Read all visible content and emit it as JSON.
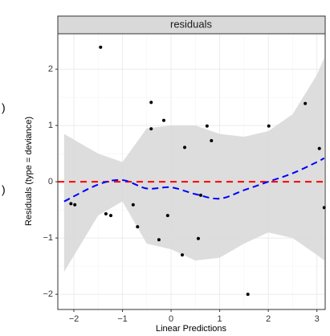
{
  "chart_data": {
    "type": "scatter",
    "strip_title": "residuals",
    "x_label": "Linear Predictions",
    "y_label": "Residuals (type = deviance)",
    "left_fragments": [
      ")",
      ")"
    ],
    "x": [
      -1.45,
      -2.06,
      -1.98,
      -1.34,
      -1.24,
      -0.78,
      -0.69,
      -0.41,
      -0.41,
      -0.25,
      -0.15,
      -0.07,
      0.23,
      0.28,
      0.56,
      0.61,
      0.74,
      0.83,
      1.58,
      2.01,
      2.76,
      3.05,
      3.15
    ],
    "values": [
      2.39,
      -0.39,
      -0.41,
      -0.57,
      -0.6,
      -0.41,
      -0.8,
      1.41,
      0.94,
      -1.03,
      1.09,
      -0.6,
      -1.3,
      0.61,
      -1.01,
      -0.24,
      0.99,
      0.73,
      -2.0,
      0.99,
      1.39,
      0.59,
      -0.46
    ],
    "point_color": "#000000",
    "smooth": {
      "x": [
        -2.2,
        -1.5,
        -1,
        -0.5,
        0,
        0.5,
        1,
        1.5,
        2,
        2.5,
        3,
        3.15
      ],
      "fit": [
        -0.35,
        -0.05,
        0.03,
        -0.12,
        -0.1,
        -0.22,
        -0.3,
        -0.15,
        0.0,
        0.15,
        0.35,
        0.42
      ],
      "upper": [
        0.85,
        0.5,
        0.35,
        0.95,
        1.0,
        1.0,
        0.85,
        0.8,
        0.9,
        1.2,
        1.9,
        2.2
      ],
      "lower": [
        -1.6,
        -0.6,
        -0.35,
        -1.1,
        -1.2,
        -1.4,
        -1.35,
        -1.1,
        -0.9,
        -1.0,
        -1.3,
        -1.4
      ],
      "color": "#0000ff",
      "band_color": "#d9d9d9"
    },
    "hline": 0,
    "hline_color": "#ff0000",
    "xlim": [
      -2.33,
      3.17
    ],
    "ylim": [
      -2.27,
      2.63
    ],
    "xticks": [
      {
        "value": -2,
        "label": "−2"
      },
      {
        "value": -1,
        "label": "−1"
      },
      0,
      1,
      2,
      3
    ],
    "yticks": [
      {
        "value": -2,
        "label": "−2"
      },
      {
        "value": -1,
        "label": "−1"
      },
      0,
      1,
      2
    ],
    "grid": true
  }
}
